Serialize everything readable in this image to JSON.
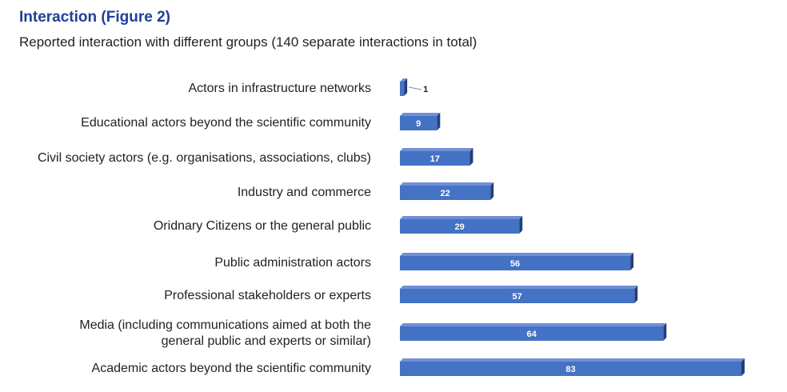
{
  "chart_data": {
    "type": "bar",
    "orientation": "horizontal",
    "title": "Interaction (Figure 2)",
    "subtitle": "Reported interaction with different groups (140 separate interactions in total)",
    "categories": [
      "Actors in infrastructure networks",
      "Educational actors beyond the scientific community",
      "Civil society actors (e.g. organisations, associations, clubs)",
      "Industry and commerce",
      "Oridnary Citizens or the general public",
      "Public administration actors",
      "Professional stakeholders or experts",
      "Media (including communications aimed at both the\ngeneral public and experts or similar)",
      "Academic actors beyond the scientific community"
    ],
    "values": [
      1,
      9,
      17,
      22,
      29,
      56,
      57,
      64,
      83
    ],
    "color": "#4472c4"
  }
}
